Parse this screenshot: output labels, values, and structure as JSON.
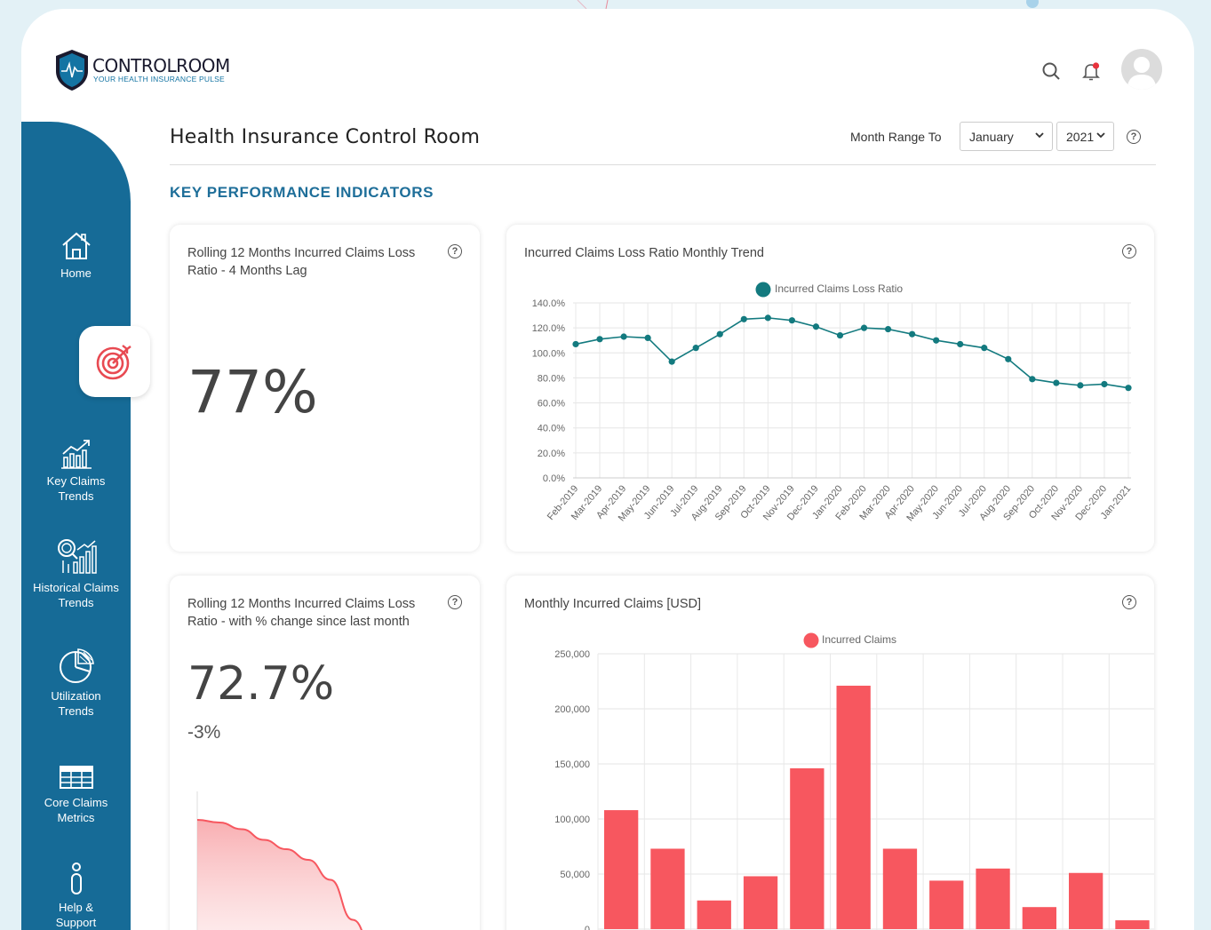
{
  "brand": {
    "title": "CONTROLROOM",
    "subtitle": "YOUR HEALTH INSURANCE PULSE"
  },
  "header": {
    "icons": [
      "search-icon",
      "bell-icon",
      "user-avatar"
    ],
    "page_title": "Health Insurance Control Room",
    "range_label": "Month Range To",
    "month_value": "January",
    "year_value": "2021"
  },
  "sidebar": {
    "items": [
      {
        "label": "Home",
        "icon": "home-icon"
      },
      {
        "label": "",
        "icon": "target-icon",
        "active": true
      },
      {
        "label": "Key Claims Trends",
        "icon": "growth-chart-icon"
      },
      {
        "label": "Historical Claims Trends",
        "icon": "history-chart-icon"
      },
      {
        "label": "Utilization Trends",
        "icon": "pie-chart-icon"
      },
      {
        "label": "Core Claims Metrics",
        "icon": "table-icon"
      },
      {
        "label": "Help & Support",
        "icon": "info-icon"
      }
    ]
  },
  "section_title": "KEY PERFORMANCE INDICATORS",
  "cards": {
    "kpi1": {
      "title": "Rolling 12 Months Incurred Claims Loss Ratio - 4 Months Lag",
      "value": "77%"
    },
    "kpi2": {
      "title": "Rolling 12 Months Incurred Claims Loss Ratio - with % change since last month",
      "value": "72.7%",
      "change": "-3%"
    },
    "trend": {
      "title": "Incurred Claims Loss Ratio Monthly Trend"
    },
    "claims": {
      "title": "Monthly Incurred Claims [USD]"
    }
  },
  "colors": {
    "sidebar": "#166b97",
    "accent_teal": "#137a7f",
    "accent_red": "#f7575f",
    "heading_blue": "#1e6e99"
  },
  "chart_data": [
    {
      "type": "line",
      "title": "Incurred Claims Loss Ratio Monthly Trend",
      "series": [
        {
          "name": "Incurred Claims Loss Ratio",
          "color": "#137a7f",
          "values": [
            107,
            111,
            113,
            112,
            93,
            104,
            115,
            127,
            128,
            126,
            121,
            114,
            120,
            119,
            115,
            110,
            107,
            104,
            95,
            79,
            76,
            74,
            75,
            72
          ]
        }
      ],
      "categories": [
        "Feb-2019",
        "Mar-2019",
        "Apr-2019",
        "May-2019",
        "Jun-2019",
        "Jul-2019",
        "Aug-2019",
        "Sep-2019",
        "Oct-2019",
        "Nov-2019",
        "Dec-2019",
        "Jan-2020",
        "Feb-2020",
        "Mar-2020",
        "Apr-2020",
        "May-2020",
        "Jun-2020",
        "Jul-2020",
        "Aug-2020",
        "Sep-2020",
        "Oct-2020",
        "Nov-2020",
        "Dec-2020",
        "Jan-2021"
      ],
      "y_ticks": [
        "0.0%",
        "20.0%",
        "40.0%",
        "60.0%",
        "80.0%",
        "100.0%",
        "120.0%",
        "140.0%"
      ],
      "ylim": [
        0,
        140
      ],
      "legend": "top-center",
      "grid": true
    },
    {
      "type": "bar",
      "title": "Monthly Incurred Claims [USD]",
      "series": [
        {
          "name": "Incurred Claims",
          "color": "#f7575f",
          "values": [
            108000,
            73000,
            26000,
            48000,
            146000,
            221000,
            73000,
            44000,
            55000,
            20000,
            51000,
            8000
          ]
        }
      ],
      "y_ticks": [
        "0",
        "50,000",
        "100,000",
        "150,000",
        "200,000",
        "250,000"
      ],
      "ylim": [
        0,
        250000
      ],
      "legend": "top-center",
      "grid": true
    },
    {
      "type": "area",
      "values": [
        100,
        98,
        93,
        85,
        78,
        70,
        55,
        25,
        0
      ],
      "color": "#f7575f"
    }
  ]
}
